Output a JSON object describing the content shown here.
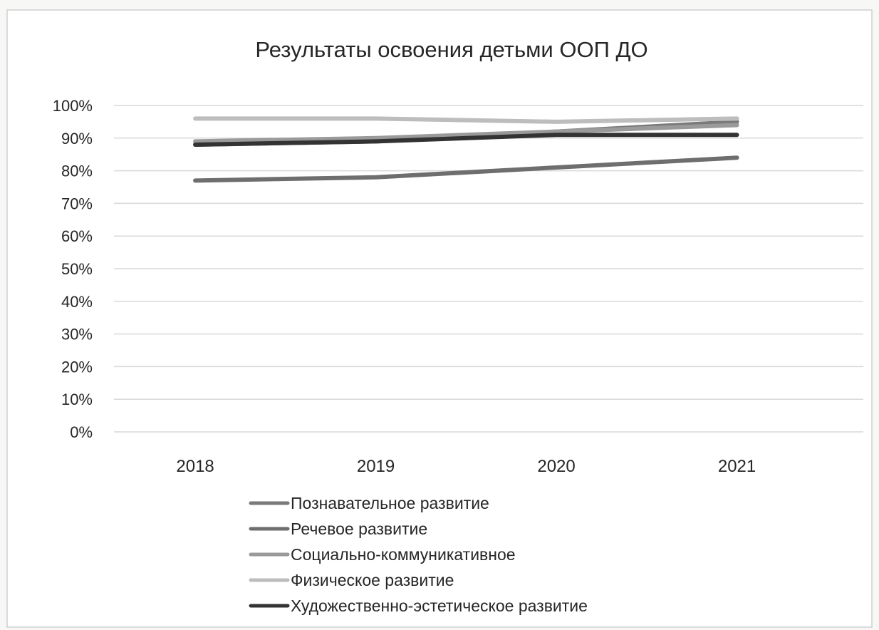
{
  "chart_data": {
    "type": "line",
    "title": "Результаты освоения детьми ООП ДО",
    "xlabel": "",
    "ylabel": "",
    "categories": [
      "2018",
      "2019",
      "2020",
      "2021"
    ],
    "y_range": [
      0,
      100
    ],
    "y_unit": "%",
    "y_ticks": [
      "0%",
      "10%",
      "20%",
      "30%",
      "40%",
      "50%",
      "60%",
      "70%",
      "80%",
      "90%",
      "100%"
    ],
    "grid": true,
    "legend_position": "bottom",
    "series": [
      {
        "name": "Познавательное развитие",
        "values": [
          88,
          89,
          92,
          95
        ],
        "color": "#7a7a7a"
      },
      {
        "name": "Речевое развитие",
        "values": [
          77,
          78,
          81,
          84
        ],
        "color": "#6e6e6e"
      },
      {
        "name": "Социально-коммуникативное",
        "values": [
          89,
          90,
          92,
          94
        ],
        "color": "#9a9a9a"
      },
      {
        "name": "Физическое развитие",
        "values": [
          96,
          96,
          95,
          96
        ],
        "color": "#bdbdbd"
      },
      {
        "name": "Художественно-эстетическое развитие",
        "values": [
          88,
          89,
          91,
          91
        ],
        "color": "#333333"
      }
    ]
  }
}
